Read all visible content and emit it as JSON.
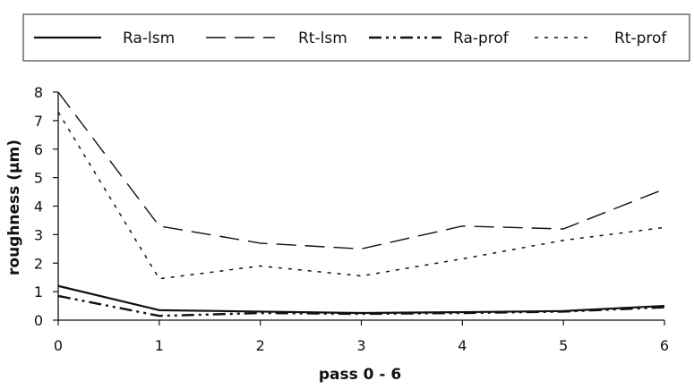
{
  "chart_data": {
    "type": "line",
    "title": "",
    "xlabel": "pass 0 - 6",
    "ylabel": "roughness (µm)",
    "x": [
      0,
      1,
      2,
      3,
      4,
      5,
      6
    ],
    "x_ticks": [
      "0",
      "1",
      "2",
      "3",
      "4",
      "5",
      "6"
    ],
    "y_ticks": [
      "0",
      "1",
      "2",
      "3",
      "4",
      "5",
      "6",
      "7",
      "8"
    ],
    "xlim": [
      0,
      6
    ],
    "ylim": [
      0,
      8
    ],
    "grid": false,
    "legend_position": "top",
    "series": [
      {
        "name": "Ra-lsm",
        "style": "solid",
        "values": [
          1.2,
          0.35,
          0.3,
          0.25,
          0.28,
          0.32,
          0.5
        ]
      },
      {
        "name": "Rt-lsm",
        "style": "dashed",
        "values": [
          8.0,
          3.3,
          2.7,
          2.5,
          3.3,
          3.2,
          4.6
        ]
      },
      {
        "name": "Ra-prof",
        "style": "dashdotdot",
        "values": [
          0.85,
          0.15,
          0.25,
          0.22,
          0.25,
          0.3,
          0.45
        ]
      },
      {
        "name": "Rt-prof",
        "style": "dotted",
        "values": [
          7.3,
          1.45,
          1.9,
          1.55,
          2.15,
          2.8,
          3.25
        ]
      }
    ]
  }
}
